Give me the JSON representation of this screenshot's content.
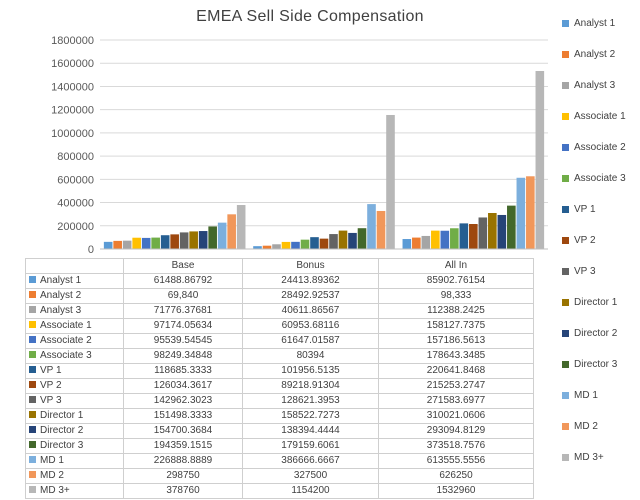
{
  "chart_data": {
    "type": "bar",
    "title": "EMEA Sell Side Compensation",
    "categories": [
      "Base",
      "Bonus",
      "All In"
    ],
    "ylim": [
      0,
      1800000
    ],
    "yticks": [
      "0",
      "200000",
      "400000",
      "600000",
      "800000",
      "1000000",
      "1200000",
      "1400000",
      "1600000",
      "1800000"
    ],
    "grid": true,
    "legend_position": "right",
    "series": [
      {
        "name": "Analyst 1",
        "color": "#5b9bd5",
        "values": [
          61488.86792,
          24413.89362,
          85902.76154
        ],
        "labels": [
          "61488.86792",
          "24413.89362",
          "85902.76154"
        ]
      },
      {
        "name": "Analyst 2",
        "color": "#ed7d31",
        "values": [
          69840,
          28492.92537,
          98333
        ],
        "labels": [
          "69,840",
          "28492.92537",
          "98,333"
        ]
      },
      {
        "name": "Analyst 3",
        "color": "#a5a5a5",
        "values": [
          71776.37681,
          40611.86567,
          112388.2425
        ],
        "labels": [
          "71776.37681",
          "40611.86567",
          "112388.2425"
        ]
      },
      {
        "name": "Associate 1",
        "color": "#ffc000",
        "values": [
          97174.05634,
          60953.68116,
          158127.7375
        ],
        "labels": [
          "97174.05634",
          "60953.68116",
          "158127.7375"
        ]
      },
      {
        "name": "Associate 2",
        "color": "#4472c4",
        "values": [
          95539.54545,
          61647.01587,
          157186.5613
        ],
        "labels": [
          "95539.54545",
          "61647.01587",
          "157186.5613"
        ]
      },
      {
        "name": "Associate 3",
        "color": "#70ad47",
        "values": [
          98249.34848,
          80394,
          178643.3485
        ],
        "labels": [
          "98249.34848",
          "80394",
          "178643.3485"
        ]
      },
      {
        "name": "VP 1",
        "color": "#255e91",
        "values": [
          118685.3333,
          101956.5135,
          220641.8468
        ],
        "labels": [
          "118685.3333",
          "101956.5135",
          "220641.8468"
        ]
      },
      {
        "name": "VP 2",
        "color": "#9e480e",
        "values": [
          126034.3617,
          89218.91304,
          215253.2747
        ],
        "labels": [
          "126034.3617",
          "89218.91304",
          "215253.2747"
        ]
      },
      {
        "name": "VP 3",
        "color": "#636363",
        "values": [
          142962.3023,
          128621.3953,
          271583.6977
        ],
        "labels": [
          "142962.3023",
          "128621.3953",
          "271583.6977"
        ]
      },
      {
        "name": "Director 1",
        "color": "#997300",
        "values": [
          151498.3333,
          158522.7273,
          310021.0606
        ],
        "labels": [
          "151498.3333",
          "158522.7273",
          "310021.0606"
        ]
      },
      {
        "name": "Director 2",
        "color": "#264478",
        "values": [
          154700.3684,
          138394.4444,
          293094.8129
        ],
        "labels": [
          "154700.3684",
          "138394.4444",
          "293094.8129"
        ]
      },
      {
        "name": "Director 3",
        "color": "#43682b",
        "values": [
          194359.1515,
          179159.6061,
          373518.7576
        ],
        "labels": [
          "194359.1515",
          "179159.6061",
          "373518.7576"
        ]
      },
      {
        "name": "MD 1",
        "color": "#7cafdd",
        "values": [
          226888.8889,
          386666.6667,
          613555.5556
        ],
        "labels": [
          "226888.8889",
          "386666.6667",
          "613555.5556"
        ]
      },
      {
        "name": "MD 2",
        "color": "#f1975a",
        "values": [
          298750,
          327500,
          626250
        ],
        "labels": [
          "298750",
          "327500",
          "626250"
        ]
      },
      {
        "name": "MD 3+",
        "color": "#b7b7b7",
        "values": [
          378760,
          1154200,
          1532960
        ],
        "labels": [
          "378760",
          "1154200",
          "1532960"
        ]
      }
    ]
  }
}
